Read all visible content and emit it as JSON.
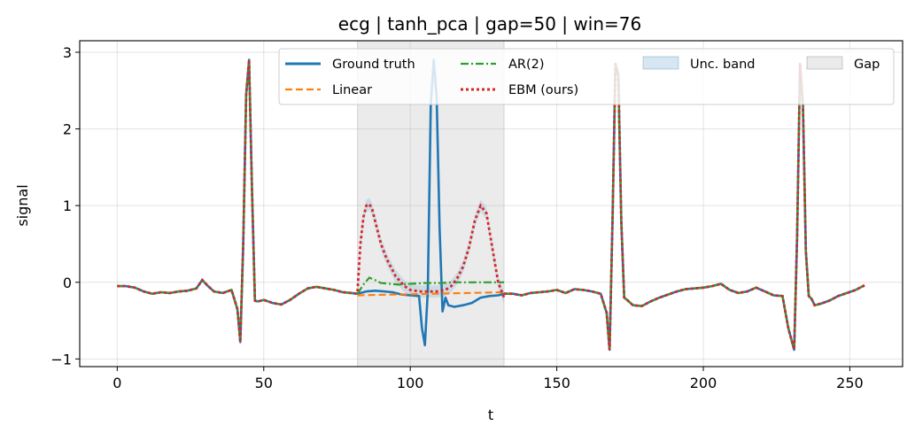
{
  "chart_data": {
    "type": "line",
    "title": "ecg | tanh_pca | gap=50 | win=76",
    "xlabel": "t",
    "ylabel": "signal",
    "xlim": [
      -12.8,
      268
    ],
    "ylim": [
      -1.1,
      3.15
    ],
    "xticks": [
      0,
      50,
      100,
      150,
      200,
      250
    ],
    "yticks": [
      -1,
      0,
      1,
      2,
      3
    ],
    "ytick_labels": [
      "−1",
      "0",
      "1",
      "2",
      "3"
    ],
    "grid": true,
    "legend_position": "top-right",
    "gap": {
      "name": "Gap",
      "start": 82,
      "end": 132,
      "color": "#d3d3d3"
    },
    "uncertainty_band": {
      "name": "Unc. band",
      "color": "#1f77b4"
    },
    "colors": {
      "ground_truth": "#1f77b4",
      "linear": "#ff7f0e",
      "ar2": "#2ca02c",
      "ebm": "#d62728"
    },
    "series": [
      {
        "name": "Ground truth",
        "key": "truth",
        "color": "#1f77b4",
        "x": [
          0,
          3,
          6,
          9,
          12,
          15,
          18,
          21,
          24,
          27,
          29,
          31,
          33,
          36,
          39,
          41,
          42,
          43,
          44,
          45,
          46,
          47,
          48,
          50,
          53,
          56,
          59,
          62,
          65,
          68,
          71,
          74,
          77,
          80,
          82,
          85,
          88,
          91,
          94,
          97,
          100,
          103,
          104,
          105,
          106,
          107,
          108,
          109,
          110,
          111,
          112,
          113,
          115,
          118,
          121,
          124,
          127,
          130,
          132,
          135,
          138,
          141,
          144,
          147,
          150,
          153,
          156,
          159,
          162,
          165,
          167,
          168,
          169,
          170,
          171,
          172,
          173,
          174,
          176,
          179,
          182,
          185,
          188,
          191,
          194,
          197,
          200,
          203,
          206,
          209,
          212,
          215,
          218,
          221,
          224,
          227,
          229,
          231,
          232,
          233,
          234,
          235,
          236,
          237,
          238,
          240,
          243,
          246,
          249,
          252,
          255
        ],
        "y": [
          -0.05,
          -0.05,
          -0.07,
          -0.12,
          -0.15,
          -0.13,
          -0.14,
          -0.12,
          -0.11,
          -0.08,
          0.03,
          -0.05,
          -0.12,
          -0.14,
          -0.1,
          -0.35,
          -0.78,
          0.5,
          2.45,
          2.9,
          1.2,
          -0.24,
          -0.25,
          -0.23,
          -0.27,
          -0.29,
          -0.23,
          -0.15,
          -0.08,
          -0.06,
          -0.08,
          -0.1,
          -0.13,
          -0.14,
          -0.15,
          -0.12,
          -0.11,
          -0.12,
          -0.13,
          -0.16,
          -0.17,
          -0.18,
          -0.6,
          -0.82,
          -0.1,
          2.3,
          2.9,
          2.4,
          0.7,
          -0.38,
          -0.2,
          -0.3,
          -0.32,
          -0.3,
          -0.27,
          -0.2,
          -0.18,
          -0.17,
          -0.15,
          -0.15,
          -0.17,
          -0.14,
          -0.13,
          -0.12,
          -0.1,
          -0.14,
          -0.09,
          -0.1,
          -0.12,
          -0.15,
          -0.4,
          -0.88,
          0.8,
          2.85,
          2.7,
          0.8,
          -0.2,
          -0.23,
          -0.3,
          -0.31,
          -0.25,
          -0.2,
          -0.16,
          -0.12,
          -0.09,
          -0.08,
          -0.07,
          -0.05,
          -0.02,
          -0.1,
          -0.14,
          -0.12,
          -0.07,
          -0.12,
          -0.17,
          -0.18,
          -0.6,
          -0.88,
          0.6,
          2.85,
          2.3,
          0.4,
          -0.18,
          -0.22,
          -0.3,
          -0.28,
          -0.24,
          -0.18,
          -0.14,
          -0.1,
          -0.04
        ]
      },
      {
        "name": "Linear",
        "key": "linear",
        "color": "#ff7f0e",
        "x": [
          82,
          132
        ],
        "y": [
          -0.17,
          -0.13
        ]
      },
      {
        "name": "AR(2)",
        "key": "ar2",
        "color": "#2ca02c",
        "x": [
          82,
          84,
          86,
          88,
          90,
          93,
          96,
          100,
          105,
          110,
          115,
          120,
          125,
          130,
          132
        ],
        "y": [
          -0.15,
          -0.03,
          0.06,
          0.03,
          -0.01,
          -0.02,
          -0.03,
          -0.02,
          -0.01,
          -0.01,
          0.0,
          0.0,
          0.0,
          0.0,
          0.0
        ]
      },
      {
        "name": "EBM (ours)",
        "key": "ebm",
        "color": "#d62728",
        "x": [
          82,
          83,
          84,
          85,
          86,
          87,
          88,
          90,
          92,
          95,
          98,
          100,
          103,
          106,
          109,
          112,
          114,
          116,
          118,
          120,
          122,
          124,
          126,
          128,
          130,
          132
        ],
        "y": [
          -0.12,
          0.5,
          0.85,
          1.0,
          1.02,
          0.95,
          0.8,
          0.5,
          0.3,
          0.08,
          -0.05,
          -0.1,
          -0.12,
          -0.12,
          -0.12,
          -0.1,
          -0.05,
          0.05,
          0.2,
          0.45,
          0.8,
          1.0,
          0.9,
          0.45,
          0.0,
          -0.2
        ]
      }
    ]
  }
}
